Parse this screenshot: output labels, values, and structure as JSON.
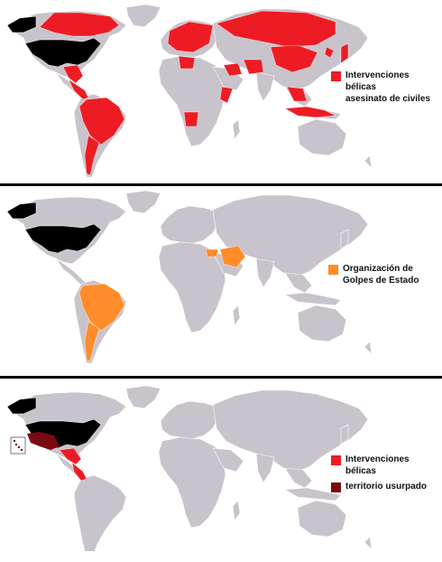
{
  "colors": {
    "land": "#c9c3cc",
    "us": "#000000",
    "intervention": "#ed1c24",
    "coup": "#ff8c28",
    "usurped": "#7a0a12",
    "divider": "#000000"
  },
  "panels": [
    {
      "id": "military-interventions",
      "legend": [
        {
          "label": "Intervenciones bélicas\nasesinato de civiles",
          "color": "#ed1c24"
        }
      ],
      "highlighted_regions": [
        "Mexico",
        "Central America",
        "Caribbean",
        "Colombia",
        "Venezuela",
        "Peru",
        "Brazil",
        "Bolivia",
        "Argentina",
        "Chile",
        "Canada",
        "Europe",
        "Russia",
        "China",
        "Korea",
        "Japan",
        "Libya",
        "Iraq",
        "Iran",
        "Afghanistan",
        "Pakistan",
        "Somalia",
        "Angola",
        "Southeast Asia",
        "Indonesia"
      ]
    },
    {
      "id": "coups",
      "legend": [
        {
          "label": "Organización de\nGolpes de Estado",
          "color": "#ff8c28"
        }
      ],
      "highlighted_regions": [
        "Colombia",
        "Venezuela",
        "Brazil",
        "Bolivia",
        "Paraguay",
        "Argentina",
        "Chile",
        "Iran",
        "Turkey",
        "Syria"
      ]
    },
    {
      "id": "territory",
      "legend": [
        {
          "label": "Intervenciones bélicas",
          "color": "#ed1c24"
        },
        {
          "label": "territorio usurpado",
          "color": "#7a0a12"
        }
      ],
      "highlighted_regions": [
        "Southwest United States (former Mexico)",
        "Hawaii",
        "Mexico",
        "Central America",
        "Caribbean"
      ]
    }
  ]
}
